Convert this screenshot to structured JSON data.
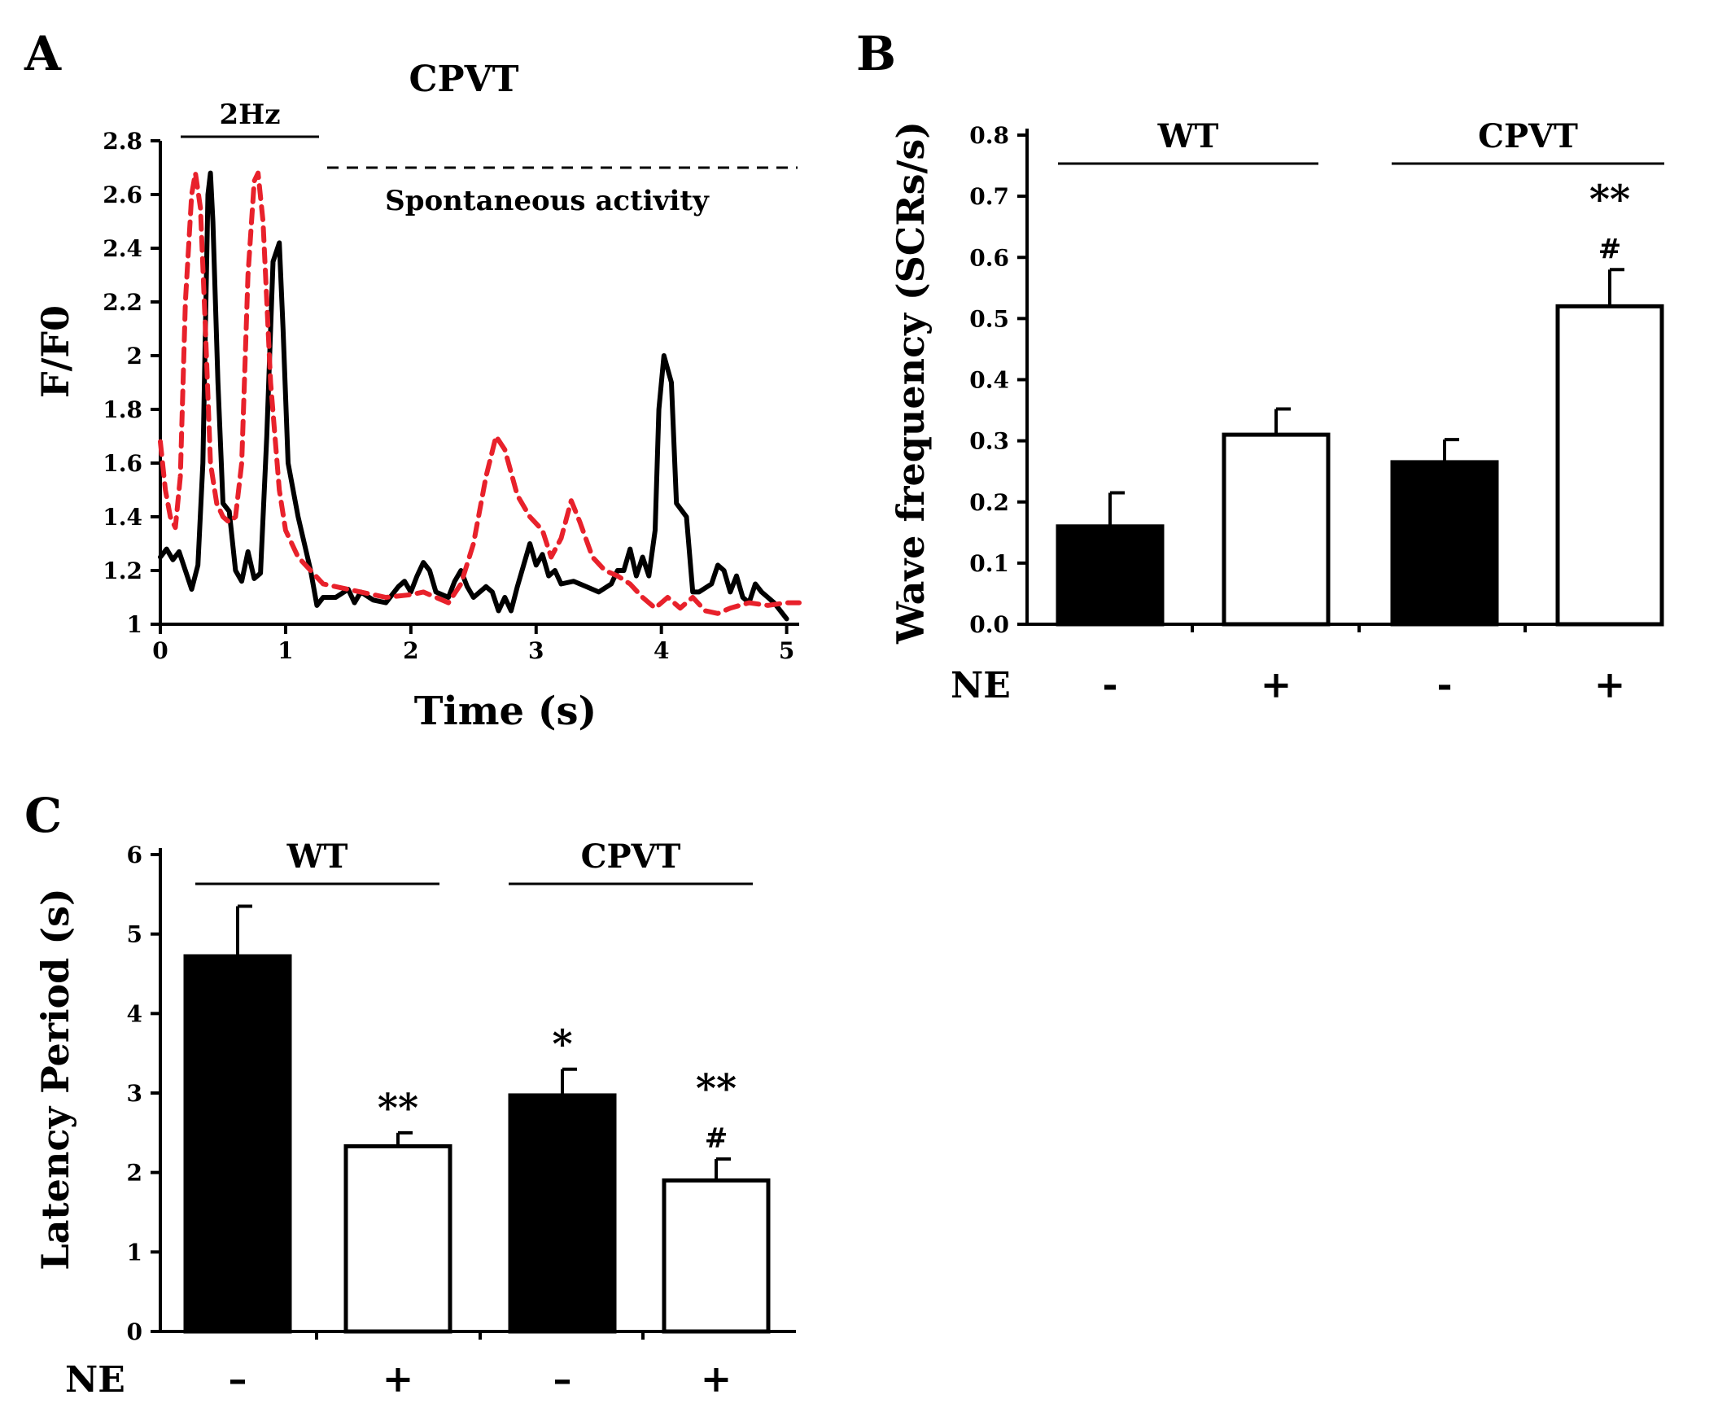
{
  "chart_data": [
    {
      "panel": "A",
      "type": "line",
      "title": "CPVT",
      "xlabel": "Time (s)",
      "ylabel": "F/F0",
      "xlim": [
        0,
        5.1
      ],
      "ylim": [
        1,
        2.8
      ],
      "xticks": [
        0,
        1,
        2,
        3,
        4,
        5
      ],
      "yticks": [
        1,
        1.2,
        1.4,
        1.6,
        1.8,
        2,
        2.2,
        2.4,
        2.6,
        2.8
      ],
      "annotations": {
        "stim": "2Hz",
        "spont": "Spontaneous activity"
      },
      "series": [
        {
          "name": "black-trace",
          "color": "#000000",
          "dash": "solid",
          "points": [
            [
              0,
              1.25
            ],
            [
              0.05,
              1.28
            ],
            [
              0.1,
              1.24
            ],
            [
              0.15,
              1.27
            ],
            [
              0.2,
              1.2
            ],
            [
              0.25,
              1.13
            ],
            [
              0.3,
              1.22
            ],
            [
              0.34,
              1.6
            ],
            [
              0.38,
              2.6
            ],
            [
              0.4,
              2.68
            ],
            [
              0.42,
              2.5
            ],
            [
              0.46,
              1.9
            ],
            [
              0.5,
              1.45
            ],
            [
              0.55,
              1.42
            ],
            [
              0.6,
              1.2
            ],
            [
              0.65,
              1.16
            ],
            [
              0.7,
              1.27
            ],
            [
              0.75,
              1.17
            ],
            [
              0.8,
              1.19
            ],
            [
              0.85,
              1.7
            ],
            [
              0.9,
              2.35
            ],
            [
              0.95,
              2.42
            ],
            [
              0.98,
              2.1
            ],
            [
              1.02,
              1.6
            ],
            [
              1.1,
              1.4
            ],
            [
              1.2,
              1.2
            ],
            [
              1.25,
              1.07
            ],
            [
              1.3,
              1.1
            ],
            [
              1.4,
              1.1
            ],
            [
              1.5,
              1.13
            ],
            [
              1.55,
              1.08
            ],
            [
              1.6,
              1.12
            ],
            [
              1.7,
              1.09
            ],
            [
              1.8,
              1.08
            ],
            [
              1.9,
              1.14
            ],
            [
              1.95,
              1.16
            ],
            [
              2,
              1.12
            ],
            [
              2.05,
              1.18
            ],
            [
              2.1,
              1.23
            ],
            [
              2.15,
              1.2
            ],
            [
              2.2,
              1.12
            ],
            [
              2.3,
              1.1
            ],
            [
              2.35,
              1.16
            ],
            [
              2.4,
              1.2
            ],
            [
              2.45,
              1.14
            ],
            [
              2.5,
              1.1
            ],
            [
              2.6,
              1.14
            ],
            [
              2.65,
              1.12
            ],
            [
              2.7,
              1.05
            ],
            [
              2.75,
              1.1
            ],
            [
              2.8,
              1.05
            ],
            [
              2.85,
              1.14
            ],
            [
              2.9,
              1.22
            ],
            [
              2.95,
              1.3
            ],
            [
              3,
              1.22
            ],
            [
              3.05,
              1.26
            ],
            [
              3.1,
              1.18
            ],
            [
              3.15,
              1.2
            ],
            [
              3.2,
              1.15
            ],
            [
              3.3,
              1.16
            ],
            [
              3.4,
              1.14
            ],
            [
              3.5,
              1.12
            ],
            [
              3.6,
              1.15
            ],
            [
              3.65,
              1.2
            ],
            [
              3.7,
              1.2
            ],
            [
              3.75,
              1.28
            ],
            [
              3.8,
              1.18
            ],
            [
              3.85,
              1.25
            ],
            [
              3.9,
              1.18
            ],
            [
              3.95,
              1.35
            ],
            [
              3.98,
              1.8
            ],
            [
              4.02,
              2.0
            ],
            [
              4.08,
              1.9
            ],
            [
              4.12,
              1.45
            ],
            [
              4.2,
              1.4
            ],
            [
              4.25,
              1.12
            ],
            [
              4.3,
              1.12
            ],
            [
              4.4,
              1.15
            ],
            [
              4.45,
              1.22
            ],
            [
              4.5,
              1.2
            ],
            [
              4.55,
              1.12
            ],
            [
              4.6,
              1.18
            ],
            [
              4.65,
              1.1
            ],
            [
              4.7,
              1.08
            ],
            [
              4.75,
              1.15
            ],
            [
              4.8,
              1.12
            ],
            [
              4.9,
              1.08
            ],
            [
              5,
              1.02
            ]
          ]
        },
        {
          "name": "red-trace",
          "color": "#e8212b",
          "dash": "dashed",
          "points": [
            [
              0,
              1.68
            ],
            [
              0.04,
              1.5
            ],
            [
              0.08,
              1.4
            ],
            [
              0.12,
              1.36
            ],
            [
              0.16,
              1.55
            ],
            [
              0.2,
              2.2
            ],
            [
              0.25,
              2.6
            ],
            [
              0.28,
              2.68
            ],
            [
              0.32,
              2.55
            ],
            [
              0.36,
              2.1
            ],
            [
              0.4,
              1.6
            ],
            [
              0.45,
              1.45
            ],
            [
              0.5,
              1.4
            ],
            [
              0.55,
              1.38
            ],
            [
              0.6,
              1.4
            ],
            [
              0.65,
              1.6
            ],
            [
              0.7,
              2.3
            ],
            [
              0.75,
              2.65
            ],
            [
              0.78,
              2.68
            ],
            [
              0.82,
              2.5
            ],
            [
              0.88,
              1.9
            ],
            [
              0.95,
              1.5
            ],
            [
              1,
              1.35
            ],
            [
              1.1,
              1.25
            ],
            [
              1.2,
              1.2
            ],
            [
              1.3,
              1.15
            ],
            [
              1.4,
              1.14
            ],
            [
              1.6,
              1.12
            ],
            [
              1.8,
              1.1
            ],
            [
              2,
              1.11
            ],
            [
              2.1,
              1.12
            ],
            [
              2.2,
              1.1
            ],
            [
              2.3,
              1.08
            ],
            [
              2.4,
              1.15
            ],
            [
              2.5,
              1.3
            ],
            [
              2.6,
              1.55
            ],
            [
              2.68,
              1.7
            ],
            [
              2.75,
              1.65
            ],
            [
              2.85,
              1.48
            ],
            [
              2.95,
              1.4
            ],
            [
              3.05,
              1.35
            ],
            [
              3.12,
              1.25
            ],
            [
              3.2,
              1.32
            ],
            [
              3.28,
              1.46
            ],
            [
              3.35,
              1.38
            ],
            [
              3.45,
              1.25
            ],
            [
              3.55,
              1.2
            ],
            [
              3.65,
              1.18
            ],
            [
              3.75,
              1.15
            ],
            [
              3.85,
              1.1
            ],
            [
              3.95,
              1.06
            ],
            [
              4.05,
              1.1
            ],
            [
              4.15,
              1.06
            ],
            [
              4.25,
              1.1
            ],
            [
              4.35,
              1.05
            ],
            [
              4.45,
              1.04
            ],
            [
              4.55,
              1.06
            ],
            [
              4.7,
              1.08
            ],
            [
              4.85,
              1.07
            ],
            [
              5,
              1.08
            ],
            [
              5.1,
              1.08
            ]
          ]
        }
      ]
    },
    {
      "panel": "B",
      "type": "bar",
      "ylabel": "Wave frequency (SCRs/s)",
      "ylim": [
        0,
        0.8
      ],
      "yticks": [
        "0.0",
        "0.1",
        "0.2",
        "0.3",
        "0.4",
        "0.5",
        "0.6",
        "0.7",
        "0.8"
      ],
      "row_label": "NE",
      "categories": [
        "-",
        "+",
        "-",
        "+"
      ],
      "groups": [
        "WT",
        "CPVT"
      ],
      "fill": [
        "#000000",
        "#ffffff",
        "#000000",
        "#ffffff"
      ],
      "values": [
        0.16,
        0.31,
        0.265,
        0.52
      ],
      "errors": [
        0.055,
        0.042,
        0.037,
        0.06
      ],
      "significance": [
        {
          "bar": 3,
          "lines": [
            "**",
            "#"
          ]
        }
      ]
    },
    {
      "panel": "C",
      "type": "bar",
      "ylabel": "Latency Period (s)",
      "ylim": [
        0,
        6
      ],
      "yticks": [
        "0",
        "1",
        "2",
        "3",
        "4",
        "5",
        "6"
      ],
      "row_label": "NE",
      "categories": [
        "–",
        "+",
        "–",
        "+"
      ],
      "groups": [
        "WT",
        "CPVT"
      ],
      "fill": [
        "#000000",
        "#ffffff",
        "#000000",
        "#ffffff"
      ],
      "values": [
        4.72,
        2.33,
        2.97,
        1.9
      ],
      "errors": [
        0.63,
        0.17,
        0.33,
        0.27
      ],
      "significance": [
        {
          "bar": 1,
          "lines": [
            "**"
          ]
        },
        {
          "bar": 2,
          "lines": [
            "*"
          ]
        },
        {
          "bar": 3,
          "lines": [
            "**",
            "#"
          ]
        }
      ]
    }
  ]
}
